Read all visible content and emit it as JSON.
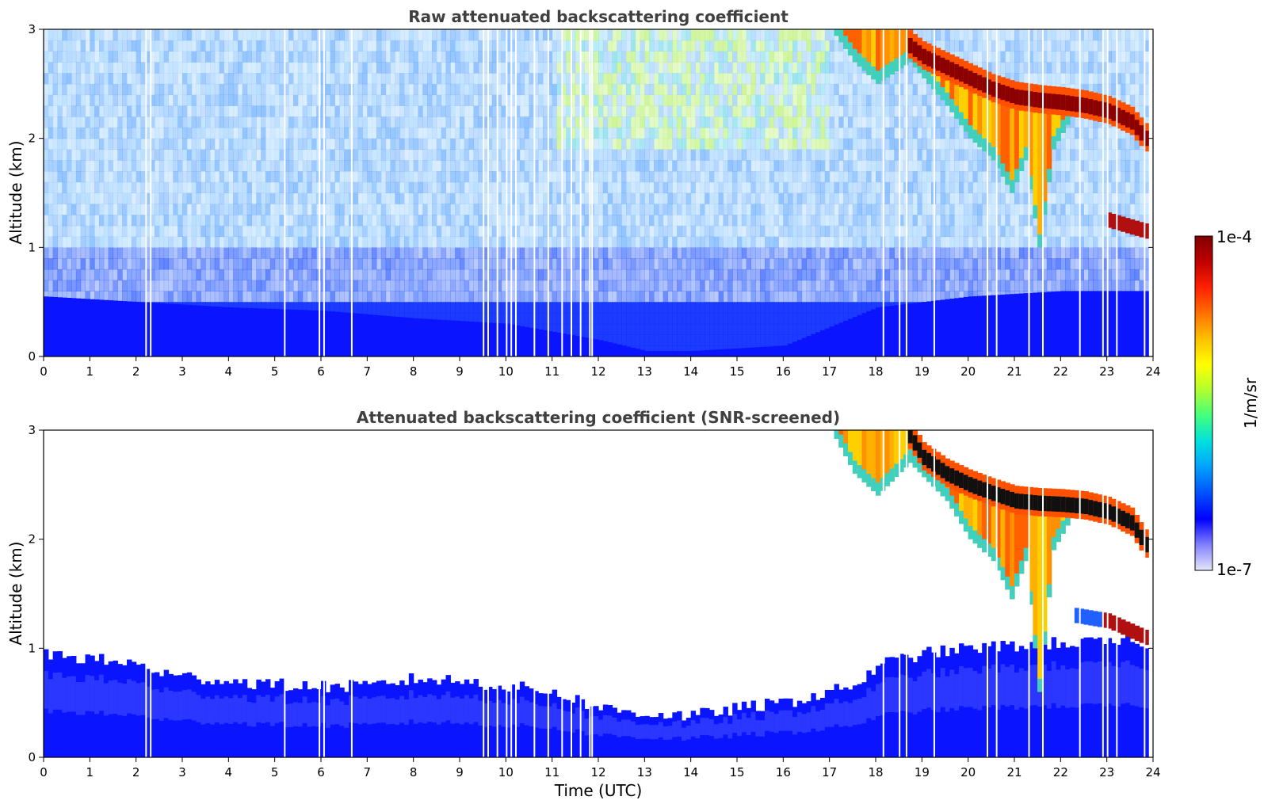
{
  "chart_data": [
    {
      "type": "heatmap",
      "title": "Raw attenuated backscattering coefficient",
      "xlabel": "",
      "ylabel": "Altitude (km)",
      "xlim": [
        0,
        24
      ],
      "ylim": [
        0,
        3
      ],
      "x_ticks": [
        "0",
        "1",
        "2",
        "3",
        "4",
        "5",
        "6",
        "7",
        "8",
        "9",
        "10",
        "11",
        "12",
        "13",
        "14",
        "15",
        "16",
        "17",
        "18",
        "19",
        "20",
        "21",
        "22",
        "23",
        "24"
      ],
      "y_ticks": [
        "0",
        "1",
        "2",
        "3"
      ],
      "layers": {
        "boundary_layer_top_km": [
          [
            0,
            0.55
          ],
          [
            2,
            0.5
          ],
          [
            4,
            0.45
          ],
          [
            6,
            0.42
          ],
          [
            8,
            0.35
          ],
          [
            10,
            0.3
          ],
          [
            12,
            0.15
          ],
          [
            13,
            0.05
          ],
          [
            14,
            0.05
          ],
          [
            16,
            0.1
          ],
          [
            18,
            0.45
          ],
          [
            20,
            0.55
          ],
          [
            22,
            0.6
          ],
          [
            23.8,
            0.6
          ]
        ],
        "cloud_layer_km": [
          [
            18.7,
            2.85
          ],
          [
            19,
            2.75
          ],
          [
            19.5,
            2.65
          ],
          [
            20,
            2.55
          ],
          [
            20.5,
            2.45
          ],
          [
            21,
            2.38
          ],
          [
            21.5,
            2.35
          ],
          [
            22,
            2.33
          ],
          [
            22.5,
            2.3
          ],
          [
            23,
            2.25
          ],
          [
            23.5,
            2.15
          ],
          [
            23.8,
            2.0
          ]
        ],
        "precipitation_km": [
          [
            17,
            3.0
          ],
          [
            17.5,
            2.7
          ],
          [
            18,
            2.5
          ],
          [
            18.7,
            2.7
          ],
          [
            19.5,
            2.3
          ],
          [
            20,
            2.0
          ],
          [
            20.5,
            1.8
          ],
          [
            20.9,
            1.5
          ],
          [
            21.2,
            1.8
          ],
          [
            21.5,
            1.0
          ],
          [
            21.8,
            1.9
          ],
          [
            22.2,
            2.2
          ]
        ],
        "low_cloud_km": [
          [
            23.0,
            1.25
          ],
          [
            23.8,
            1.15
          ]
        ]
      },
      "missing_profiles_hours": [
        2.2,
        2.3,
        5.2,
        5.95,
        6.05,
        6.65,
        9.5,
        9.6,
        9.8,
        10.0,
        10.1,
        10.2,
        10.6,
        10.9,
        11.2,
        11.4,
        11.6,
        11.8,
        11.85,
        18.15,
        18.5,
        18.65,
        19.25,
        20.4,
        20.6,
        21.3,
        21.6,
        22.4,
        22.9,
        23.0,
        23.2,
        23.8
      ]
    },
    {
      "type": "heatmap",
      "title": "Attenuated backscattering coefficient (SNR-screened)",
      "xlabel": "Time (UTC)",
      "ylabel": "Altitude (km)",
      "xlim": [
        0,
        24
      ],
      "ylim": [
        0,
        3
      ],
      "x_ticks": [
        "0",
        "1",
        "2",
        "3",
        "4",
        "5",
        "6",
        "7",
        "8",
        "9",
        "10",
        "11",
        "12",
        "13",
        "14",
        "15",
        "16",
        "17",
        "18",
        "19",
        "20",
        "21",
        "22",
        "23",
        "24"
      ],
      "y_ticks": [
        "0",
        "1",
        "2",
        "3"
      ],
      "layers": {
        "boundary_layer_top_km": [
          [
            0,
            0.95
          ],
          [
            1,
            0.9
          ],
          [
            2,
            0.85
          ],
          [
            2.7,
            0.75
          ],
          [
            4,
            0.7
          ],
          [
            5.5,
            0.65
          ],
          [
            7,
            0.65
          ],
          [
            8,
            0.72
          ],
          [
            9,
            0.7
          ],
          [
            10,
            0.65
          ],
          [
            11,
            0.6
          ],
          [
            12,
            0.45
          ],
          [
            13,
            0.4
          ],
          [
            14,
            0.38
          ],
          [
            15,
            0.45
          ],
          [
            16,
            0.5
          ],
          [
            17,
            0.6
          ],
          [
            17.7,
            0.7
          ],
          [
            18,
            0.85
          ],
          [
            19,
            0.95
          ],
          [
            20,
            1.0
          ],
          [
            22,
            1.05
          ],
          [
            23.8,
            1.05
          ]
        ],
        "cloud_layer_km": [
          [
            18.7,
            2.95
          ],
          [
            19,
            2.75
          ],
          [
            19.5,
            2.6
          ],
          [
            20,
            2.5
          ],
          [
            20.5,
            2.42
          ],
          [
            21,
            2.35
          ],
          [
            21.5,
            2.33
          ],
          [
            22,
            2.32
          ],
          [
            22.5,
            2.3
          ],
          [
            23,
            2.25
          ],
          [
            23.5,
            2.15
          ],
          [
            23.8,
            1.95
          ]
        ],
        "precipitation_km": [
          [
            17,
            3.0
          ],
          [
            17.5,
            2.6
          ],
          [
            18,
            2.4
          ],
          [
            18.7,
            2.7
          ],
          [
            19.5,
            2.35
          ],
          [
            20,
            2.0
          ],
          [
            20.5,
            1.8
          ],
          [
            20.9,
            1.45
          ],
          [
            21.2,
            1.8
          ],
          [
            21.5,
            0.6
          ],
          [
            21.8,
            1.9
          ],
          [
            22.2,
            2.2
          ]
        ],
        "low_cloud_km": [
          [
            22.3,
            1.3
          ],
          [
            23.0,
            1.25
          ],
          [
            23.8,
            1.1
          ]
        ]
      },
      "missing_profiles_hours": [
        2.2,
        2.3,
        5.2,
        5.95,
        6.05,
        6.65,
        9.5,
        9.6,
        9.8,
        10.0,
        10.1,
        10.2,
        10.6,
        10.9,
        11.2,
        11.4,
        11.6,
        11.8,
        11.85,
        18.15,
        18.5,
        18.65,
        19.25,
        20.4,
        20.6,
        21.3,
        21.6,
        22.4,
        22.9,
        23.0,
        23.2,
        23.8
      ]
    }
  ],
  "colorbar": {
    "max_label": "1e-4",
    "min_label": "1e-7",
    "label": "1/m/sr",
    "colormap": [
      "#e6e6fa",
      "#8080ff",
      "#0000ff",
      "#0050ff",
      "#00a0ff",
      "#00e0e0",
      "#40ff80",
      "#b0ff30",
      "#ffff00",
      "#ffc000",
      "#ff7000",
      "#ff2000",
      "#c00000",
      "#800000"
    ]
  }
}
